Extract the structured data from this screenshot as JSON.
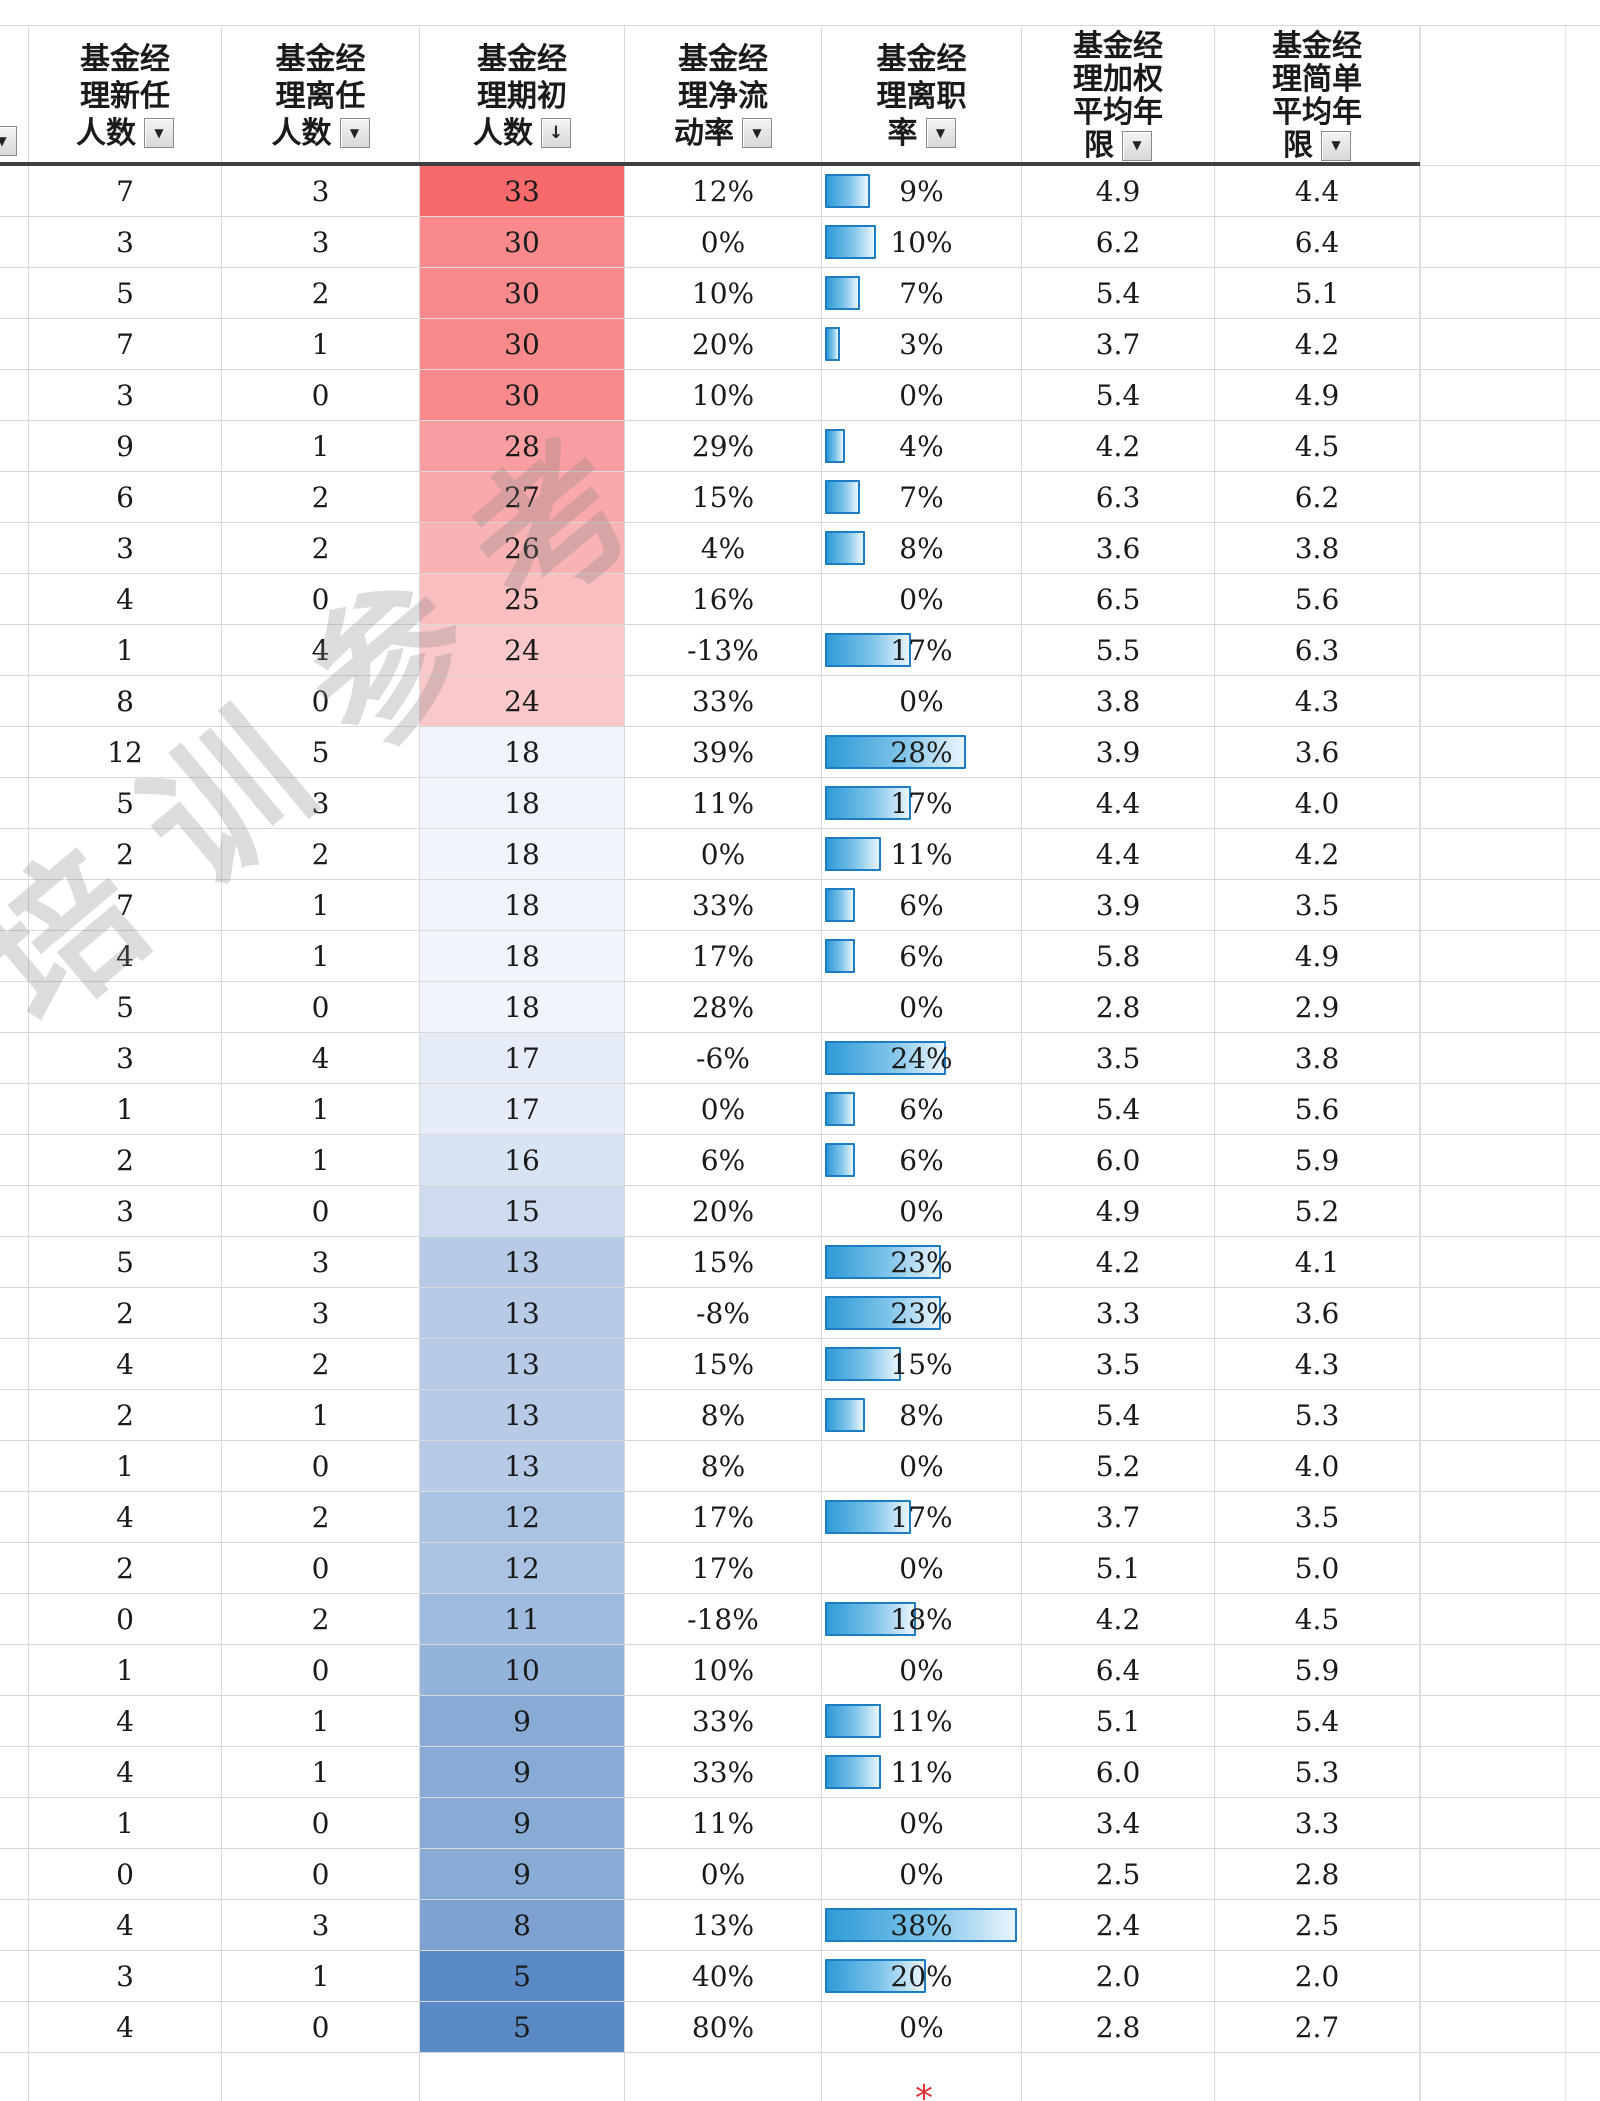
{
  "watermark": {
    "text": "培训参考"
  },
  "icons": {
    "dropdown": "▼",
    "sort_descending": "↓"
  },
  "colors": {
    "scale_max": "#F8696B",
    "scale_mid": "#FCFCFF",
    "scale_min": "#5A8AC6",
    "bar_fill_start": "#2E9BD6",
    "bar_fill_mid": "#7FC4EA",
    "bar_fill_end": "#EAF5FD",
    "bar_border": "#1C7CC4",
    "header_border": "#3F3F3F",
    "gridline": "#D9D9D9",
    "mark_red": "#E03030"
  },
  "color_scale": {
    "min_value": 5,
    "mid_value": 19,
    "max_value": 33
  },
  "databar": {
    "max_value": 38
  },
  "table": {
    "columns": [
      {
        "id": "new-managers",
        "label": "基金经理新任人数",
        "lines": [
          "基金经",
          "理新任",
          "人数"
        ],
        "sorted": false
      },
      {
        "id": "departed-managers",
        "label": "基金经理离任人数",
        "lines": [
          "基金经",
          "理离任",
          "人数"
        ],
        "sorted": false
      },
      {
        "id": "initial-managers",
        "label": "基金经理期初人数",
        "lines": [
          "基金经",
          "理期初",
          "人数"
        ],
        "sorted": true
      },
      {
        "id": "net-flow-rate",
        "label": "基金经理净流动率",
        "lines": [
          "基金经",
          "理净流",
          "动率"
        ],
        "sorted": false
      },
      {
        "id": "turnover-rate",
        "label": "基金经理离职率",
        "lines": [
          "基金经",
          "理离职",
          "率"
        ],
        "sorted": false
      },
      {
        "id": "weighted-avg-tenure",
        "label": "基金经理加权平均年限",
        "lines": [
          "基金经",
          "理加权",
          "平均年",
          "限"
        ],
        "sorted": false
      },
      {
        "id": "simple-avg-tenure",
        "label": "基金经理简单平均年限",
        "lines": [
          "基金经",
          "理简单",
          "平均年",
          "限"
        ],
        "sorted": false
      }
    ],
    "rows": [
      [
        "7",
        "3",
        "33",
        "12%",
        "9%",
        "4.9",
        "4.4"
      ],
      [
        "3",
        "3",
        "30",
        "0%",
        "10%",
        "6.2",
        "6.4"
      ],
      [
        "5",
        "2",
        "30",
        "10%",
        "7%",
        "5.4",
        "5.1"
      ],
      [
        "7",
        "1",
        "30",
        "20%",
        "3%",
        "3.7",
        "4.2"
      ],
      [
        "3",
        "0",
        "30",
        "10%",
        "0%",
        "5.4",
        "4.9"
      ],
      [
        "9",
        "1",
        "28",
        "29%",
        "4%",
        "4.2",
        "4.5"
      ],
      [
        "6",
        "2",
        "27",
        "15%",
        "7%",
        "6.3",
        "6.2"
      ],
      [
        "3",
        "2",
        "26",
        "4%",
        "8%",
        "3.6",
        "3.8"
      ],
      [
        "4",
        "0",
        "25",
        "16%",
        "0%",
        "6.5",
        "5.6"
      ],
      [
        "1",
        "4",
        "24",
        "-13%",
        "17%",
        "5.5",
        "6.3"
      ],
      [
        "8",
        "0",
        "24",
        "33%",
        "0%",
        "3.8",
        "4.3"
      ],
      [
        "12",
        "5",
        "18",
        "39%",
        "28%",
        "3.9",
        "3.6"
      ],
      [
        "5",
        "3",
        "18",
        "11%",
        "17%",
        "4.4",
        "4.0"
      ],
      [
        "2",
        "2",
        "18",
        "0%",
        "11%",
        "4.4",
        "4.2"
      ],
      [
        "7",
        "1",
        "18",
        "33%",
        "6%",
        "3.9",
        "3.5"
      ],
      [
        "4",
        "1",
        "18",
        "17%",
        "6%",
        "5.8",
        "4.9"
      ],
      [
        "5",
        "0",
        "18",
        "28%",
        "0%",
        "2.8",
        "2.9"
      ],
      [
        "3",
        "4",
        "17",
        "-6%",
        "24%",
        "3.5",
        "3.8"
      ],
      [
        "1",
        "1",
        "17",
        "0%",
        "6%",
        "5.4",
        "5.6"
      ],
      [
        "2",
        "1",
        "16",
        "6%",
        "6%",
        "6.0",
        "5.9"
      ],
      [
        "3",
        "0",
        "15",
        "20%",
        "0%",
        "4.9",
        "5.2"
      ],
      [
        "5",
        "3",
        "13",
        "15%",
        "23%",
        "4.2",
        "4.1"
      ],
      [
        "2",
        "3",
        "13",
        "-8%",
        "23%",
        "3.3",
        "3.6"
      ],
      [
        "4",
        "2",
        "13",
        "15%",
        "15%",
        "3.5",
        "4.3"
      ],
      [
        "2",
        "1",
        "13",
        "8%",
        "8%",
        "5.4",
        "5.3"
      ],
      [
        "1",
        "0",
        "13",
        "8%",
        "0%",
        "5.2",
        "4.0"
      ],
      [
        "4",
        "2",
        "12",
        "17%",
        "17%",
        "3.7",
        "3.5"
      ],
      [
        "2",
        "0",
        "12",
        "17%",
        "0%",
        "5.1",
        "5.0"
      ],
      [
        "0",
        "2",
        "11",
        "-18%",
        "18%",
        "4.2",
        "4.5"
      ],
      [
        "1",
        "0",
        "10",
        "10%",
        "0%",
        "6.4",
        "5.9"
      ],
      [
        "4",
        "1",
        "9",
        "33%",
        "11%",
        "5.1",
        "5.4"
      ],
      [
        "4",
        "1",
        "9",
        "33%",
        "11%",
        "6.0",
        "5.3"
      ],
      [
        "1",
        "0",
        "9",
        "11%",
        "0%",
        "3.4",
        "3.3"
      ],
      [
        "0",
        "0",
        "9",
        "0%",
        "0%",
        "2.5",
        "2.8"
      ],
      [
        "4",
        "3",
        "8",
        "13%",
        "38%",
        "2.4",
        "2.5"
      ],
      [
        "3",
        "1",
        "5",
        "40%",
        "20%",
        "2.0",
        "2.0"
      ],
      [
        "4",
        "0",
        "5",
        "80%",
        "0%",
        "2.8",
        "2.7"
      ]
    ]
  },
  "bottom_mark": "*"
}
